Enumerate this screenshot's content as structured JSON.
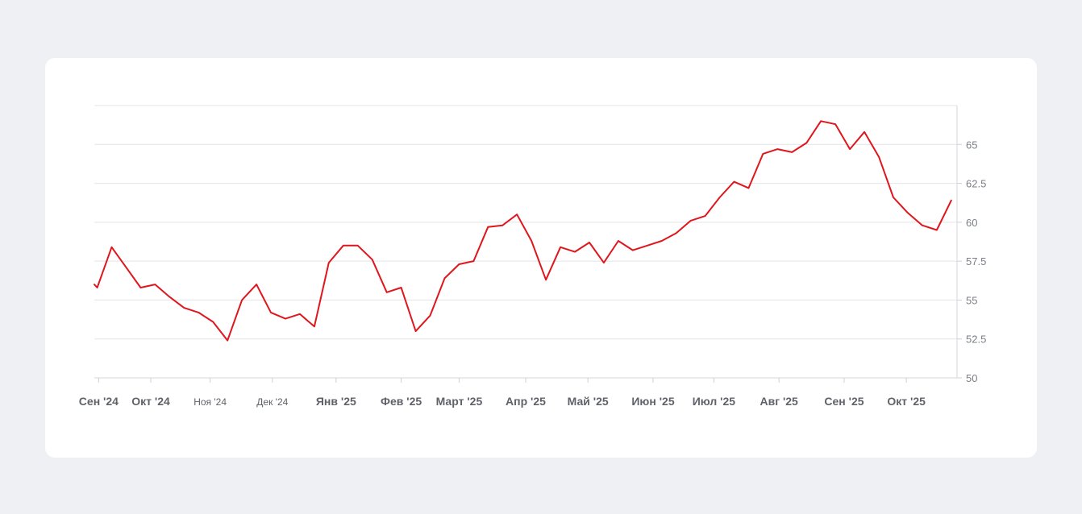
{
  "chart_data": {
    "type": "line",
    "title": "",
    "xlabel": "",
    "ylabel": "",
    "y_ticks": [
      "65",
      "62.5",
      "60",
      "57.5",
      "55",
      "52.5",
      "50"
    ],
    "y_tick_values": [
      65,
      62.5,
      60,
      57.5,
      55,
      52.5,
      50
    ],
    "ylim": [
      50,
      67.5
    ],
    "y_axis_position": "right",
    "grid": true,
    "legend": "none",
    "x_tick_labels": [
      {
        "label": "Сен '24",
        "x": 0.3,
        "style": "bold"
      },
      {
        "label": "Окт '24",
        "x": 3.9,
        "style": "bold"
      },
      {
        "label": "Ноя '24",
        "x": 8.0,
        "style": "small"
      },
      {
        "label": "Дек '24",
        "x": 12.3,
        "style": "small"
      },
      {
        "label": "Янв '25",
        "x": 16.7,
        "style": "bold"
      },
      {
        "label": "Фев '25",
        "x": 21.2,
        "style": "bold"
      },
      {
        "label": "Март '25",
        "x": 25.2,
        "style": "bold"
      },
      {
        "label": "Апр '25",
        "x": 29.8,
        "style": "bold"
      },
      {
        "label": "Май '25",
        "x": 34.1,
        "style": "bold"
      },
      {
        "label": "Июн '25",
        "x": 38.6,
        "style": "bold"
      },
      {
        "label": "Июл '25",
        "x": 42.8,
        "style": "bold"
      },
      {
        "label": "Авг '25",
        "x": 47.3,
        "style": "bold"
      },
      {
        "label": "Сен '25",
        "x": 51.8,
        "style": "bold"
      },
      {
        "label": "Окт '25",
        "x": 56.1,
        "style": "bold"
      }
    ],
    "xlim": [
      0,
      59.6
    ],
    "series": [
      {
        "color": "#e0161d",
        "x": [
          0,
          0.2,
          1.2,
          2.2,
          3.2,
          4.2,
          5.2,
          6.2,
          7.2,
          8.2,
          9.2,
          10.2,
          11.2,
          12.2,
          13.2,
          14.2,
          15.2,
          16.2,
          17.2,
          18.2,
          19.2,
          20.2,
          21.2,
          22.2,
          23.2,
          24.2,
          25.2,
          26.2,
          27.2,
          28.2,
          29.2,
          30.2,
          31.2,
          32.2,
          33.2,
          34.2,
          35.2,
          36.2,
          37.2,
          38.2,
          39.2,
          40.2,
          41.2,
          42.2,
          43.2,
          44.2,
          45.2,
          46.2,
          47.2,
          48.2,
          49.2,
          50.2,
          51.2,
          52.2,
          53.2,
          54.2,
          55.2,
          56.2,
          57.2,
          58.2,
          59.2
        ],
        "values": [
          56.0,
          55.8,
          58.4,
          57.1,
          55.8,
          56.0,
          55.2,
          54.5,
          54.2,
          53.6,
          52.4,
          55.0,
          56.0,
          54.2,
          53.8,
          54.1,
          53.3,
          57.4,
          58.5,
          58.5,
          57.6,
          55.5,
          55.8,
          53.0,
          54.0,
          56.4,
          57.3,
          57.5,
          59.7,
          59.8,
          60.5,
          58.8,
          56.3,
          58.4,
          58.1,
          58.7,
          57.4,
          58.8,
          58.2,
          58.5,
          58.8,
          59.3,
          60.1,
          60.4,
          61.6,
          62.6,
          62.2,
          64.4,
          64.7,
          64.5,
          65.1,
          66.5,
          66.3,
          64.7,
          65.8,
          64.2,
          61.6,
          60.6,
          59.8,
          59.5,
          61.4
        ]
      }
    ]
  }
}
